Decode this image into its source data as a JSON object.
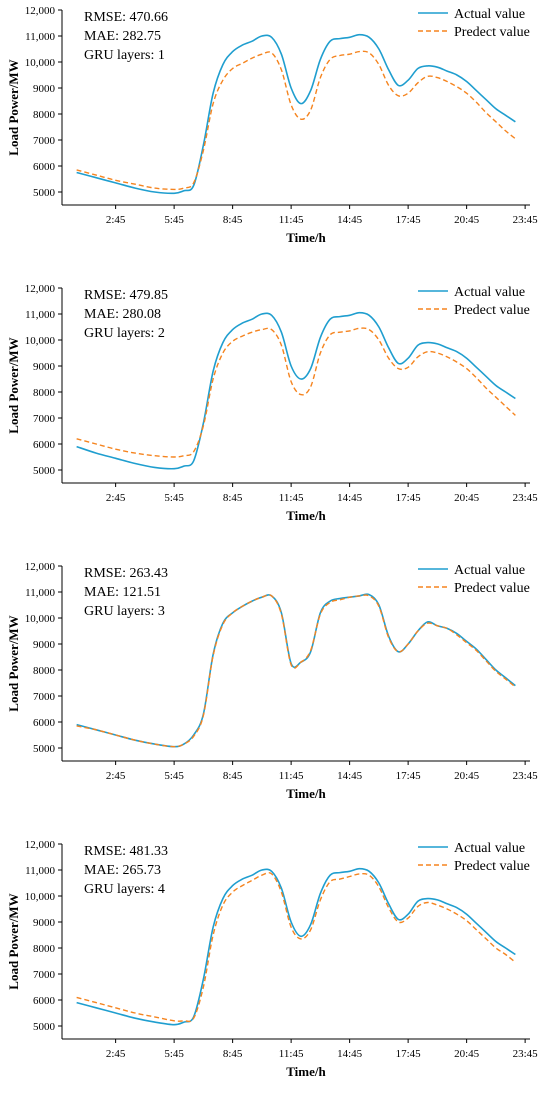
{
  "legend_labels": {
    "actual": "Actual value",
    "predict": "Predect value"
  },
  "colors": {
    "actual": "#1f9ecf",
    "predict": "#f5841f"
  },
  "chart_data": [
    {
      "type": "line",
      "xlabel": "Time/h",
      "ylabel": "Load Power/MW",
      "ylim": [
        4500,
        12000
      ],
      "yticks": [
        "5000",
        "6000",
        "7000",
        "8000",
        "9000",
        "10,000",
        "11,000",
        "12,000"
      ],
      "xticks": [
        "2:45",
        "5:45",
        "8:45",
        "11:45",
        "14:45",
        "17:45",
        "20:45",
        "23:45"
      ],
      "stats": [
        "RMSE: 470.66",
        "MAE:   282.75",
        "GRU layers: 1"
      ],
      "x": [
        0.75,
        1.75,
        2.75,
        3.75,
        4.75,
        5.75,
        6.25,
        6.75,
        7.25,
        7.75,
        8.25,
        8.75,
        9.25,
        9.75,
        10.25,
        10.75,
        11.25,
        11.75,
        12.25,
        12.75,
        13.25,
        13.75,
        14.25,
        14.75,
        15.25,
        15.75,
        16.25,
        16.75,
        17.25,
        17.75,
        18.25,
        18.75,
        19.25,
        19.75,
        20.25,
        20.75,
        21.25,
        21.75,
        22.25,
        22.75,
        23.25
      ],
      "series": [
        {
          "name": "Actual value",
          "values": [
            5750,
            5550,
            5350,
            5150,
            5000,
            4950,
            5050,
            5250,
            6800,
            8800,
            9900,
            10400,
            10650,
            10800,
            11000,
            10950,
            10300,
            9000,
            8400,
            8900,
            10100,
            10800,
            10900,
            10950,
            11050,
            10950,
            10500,
            9700,
            9100,
            9300,
            9750,
            9850,
            9800,
            9650,
            9500,
            9250,
            8900,
            8550,
            8200,
            7950,
            7700
          ]
        },
        {
          "name": "Predect value",
          "values": [
            5850,
            5650,
            5450,
            5300,
            5150,
            5100,
            5150,
            5350,
            6600,
            8400,
            9300,
            9750,
            9950,
            10150,
            10300,
            10350,
            9700,
            8350,
            7800,
            8150,
            9400,
            10100,
            10250,
            10300,
            10400,
            10350,
            9900,
            9100,
            8700,
            8800,
            9200,
            9450,
            9400,
            9250,
            9050,
            8800,
            8450,
            8050,
            7700,
            7350,
            7050
          ]
        }
      ]
    },
    {
      "type": "line",
      "xlabel": "Time/h",
      "ylabel": "Load Power/MW",
      "ylim": [
        4500,
        12000
      ],
      "yticks": [
        "5000",
        "6000",
        "7000",
        "8000",
        "9000",
        "10,000",
        "11,000",
        "12,000"
      ],
      "xticks": [
        "2:45",
        "5:45",
        "8:45",
        "11:45",
        "14:45",
        "17:45",
        "20:45",
        "23:45"
      ],
      "stats": [
        "RMSE: 479.85",
        "MAE:   280.08",
        "GRU layers: 2"
      ],
      "x": [
        0.75,
        1.75,
        2.75,
        3.75,
        4.75,
        5.75,
        6.25,
        6.75,
        7.25,
        7.75,
        8.25,
        8.75,
        9.25,
        9.75,
        10.25,
        10.75,
        11.25,
        11.75,
        12.25,
        12.75,
        13.25,
        13.75,
        14.25,
        14.75,
        15.25,
        15.75,
        16.25,
        16.75,
        17.25,
        17.75,
        18.25,
        18.75,
        19.25,
        19.75,
        20.25,
        20.75,
        21.25,
        21.75,
        22.25,
        22.75,
        23.25
      ],
      "series": [
        {
          "name": "Actual value",
          "values": [
            5900,
            5650,
            5450,
            5250,
            5100,
            5050,
            5150,
            5350,
            6800,
            8800,
            9900,
            10400,
            10650,
            10800,
            11000,
            10950,
            10300,
            9000,
            8500,
            8900,
            10100,
            10800,
            10900,
            10950,
            11050,
            10950,
            10500,
            9700,
            9100,
            9300,
            9800,
            9900,
            9850,
            9700,
            9550,
            9300,
            8950,
            8600,
            8250,
            8000,
            7750
          ]
        },
        {
          "name": "Predect value",
          "values": [
            6200,
            6000,
            5800,
            5650,
            5550,
            5500,
            5550,
            5700,
            6700,
            8500,
            9500,
            9950,
            10150,
            10300,
            10400,
            10400,
            9800,
            8400,
            7900,
            8200,
            9500,
            10200,
            10300,
            10350,
            10450,
            10400,
            10000,
            9300,
            8900,
            8950,
            9350,
            9550,
            9500,
            9350,
            9150,
            8900,
            8550,
            8150,
            7800,
            7450,
            7100
          ]
        }
      ]
    },
    {
      "type": "line",
      "xlabel": "Time/h",
      "ylabel": "Load Power/MW",
      "ylim": [
        4500,
        12000
      ],
      "yticks": [
        "5000",
        "6000",
        "7000",
        "8000",
        "9000",
        "10,000",
        "11,000",
        "12,000"
      ],
      "xticks": [
        "2:45",
        "5:45",
        "8:45",
        "11:45",
        "14:45",
        "17:45",
        "20:45",
        "23:45"
      ],
      "stats": [
        "RMSE: 263.43",
        "MAE:   121.51",
        "GRU layers: 3"
      ],
      "x": [
        0.75,
        1.75,
        2.75,
        3.75,
        4.75,
        5.75,
        6.25,
        6.75,
        7.25,
        7.75,
        8.25,
        8.75,
        9.25,
        9.75,
        10.25,
        10.75,
        11.25,
        11.75,
        12.25,
        12.75,
        13.25,
        13.75,
        14.25,
        14.75,
        15.25,
        15.75,
        16.25,
        16.75,
        17.25,
        17.75,
        18.25,
        18.75,
        19.25,
        19.75,
        20.25,
        20.75,
        21.25,
        21.75,
        22.25,
        22.75,
        23.25
      ],
      "series": [
        {
          "name": "Actual value",
          "values": [
            5900,
            5700,
            5500,
            5300,
            5150,
            5050,
            5150,
            5500,
            6300,
            8600,
            9800,
            10200,
            10450,
            10650,
            10800,
            10850,
            10200,
            8250,
            8300,
            8700,
            10200,
            10650,
            10750,
            10800,
            10850,
            10900,
            10500,
            9300,
            8700,
            9000,
            9500,
            9850,
            9700,
            9600,
            9400,
            9100,
            8800,
            8400,
            8000,
            7700,
            7400
          ]
        },
        {
          "name": "Predect value",
          "values": [
            5850,
            5700,
            5500,
            5300,
            5150,
            5050,
            5150,
            5450,
            6250,
            8550,
            9750,
            10200,
            10450,
            10650,
            10800,
            10850,
            10150,
            8200,
            8300,
            8750,
            10150,
            10600,
            10700,
            10800,
            10850,
            10850,
            10450,
            9250,
            8700,
            9000,
            9500,
            9800,
            9700,
            9600,
            9350,
            9050,
            8750,
            8350,
            7950,
            7650,
            7350
          ]
        }
      ]
    },
    {
      "type": "line",
      "xlabel": "Time/h",
      "ylabel": "Load Power/MW",
      "ylim": [
        4500,
        12000
      ],
      "yticks": [
        "5000",
        "6000",
        "7000",
        "8000",
        "9000",
        "10,000",
        "11,000",
        "12,000"
      ],
      "xticks": [
        "2:45",
        "5:45",
        "8:45",
        "11:45",
        "14:45",
        "17:45",
        "20:45",
        "23:45"
      ],
      "stats": [
        "RMSE: 481.33",
        "MAE:   265.73",
        "GRU layers: 4"
      ],
      "x": [
        0.75,
        1.75,
        2.75,
        3.75,
        4.75,
        5.75,
        6.25,
        6.75,
        7.25,
        7.75,
        8.25,
        8.75,
        9.25,
        9.75,
        10.25,
        10.75,
        11.25,
        11.75,
        12.25,
        12.75,
        13.25,
        13.75,
        14.25,
        14.75,
        15.25,
        15.75,
        16.25,
        16.75,
        17.25,
        17.75,
        18.25,
        18.75,
        19.25,
        19.75,
        20.25,
        20.75,
        21.25,
        21.75,
        22.25,
        22.75,
        23.25
      ],
      "series": [
        {
          "name": "Actual value",
          "values": [
            5900,
            5700,
            5500,
            5300,
            5150,
            5050,
            5150,
            5350,
            6800,
            8800,
            9900,
            10400,
            10650,
            10800,
            11000,
            10950,
            10300,
            9000,
            8450,
            8900,
            10100,
            10800,
            10900,
            10950,
            11050,
            10950,
            10500,
            9700,
            9100,
            9300,
            9800,
            9900,
            9850,
            9700,
            9550,
            9300,
            8950,
            8600,
            8250,
            8000,
            7750
          ]
        },
        {
          "name": "Predect value",
          "values": [
            6100,
            5900,
            5700,
            5500,
            5350,
            5200,
            5200,
            5300,
            6500,
            8500,
            9650,
            10150,
            10400,
            10600,
            10800,
            10850,
            10150,
            8800,
            8350,
            8700,
            9850,
            10550,
            10650,
            10750,
            10850,
            10800,
            10350,
            9550,
            9000,
            9150,
            9600,
            9750,
            9650,
            9500,
            9300,
            9050,
            8700,
            8350,
            8000,
            7750,
            7450
          ]
        }
      ]
    }
  ]
}
